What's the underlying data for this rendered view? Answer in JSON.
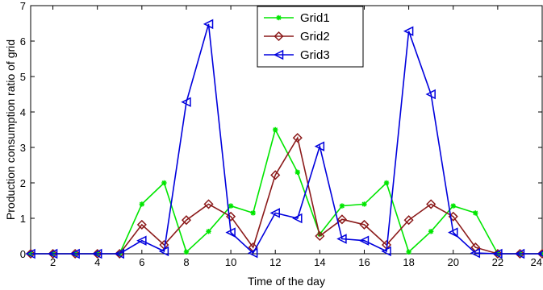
{
  "chart_data": {
    "type": "line",
    "title": "",
    "xlabel": "Time of the day",
    "ylabel": "Production consumption ratio of grid",
    "xlim": [
      1,
      24
    ],
    "ylim": [
      0,
      7
    ],
    "xticks": [
      2,
      4,
      6,
      8,
      10,
      12,
      14,
      16,
      18,
      20,
      22,
      24
    ],
    "yticks": [
      0,
      1,
      2,
      3,
      4,
      5,
      6,
      7
    ],
    "grid": false,
    "legend_position": "top-center",
    "x": [
      1,
      2,
      3,
      4,
      5,
      6,
      7,
      8,
      9,
      10,
      11,
      12,
      13,
      14,
      15,
      16,
      17,
      18,
      19,
      20,
      21,
      22,
      23,
      24
    ],
    "series": [
      {
        "name": "Grid1",
        "color": "#00e600",
        "marker": "asterisk",
        "values": [
          0,
          0,
          0,
          0,
          0,
          1.4,
          2.0,
          0.05,
          0.63,
          1.35,
          1.15,
          3.5,
          2.3,
          0.55,
          1.35,
          1.4,
          2.0,
          0.05,
          0.63,
          1.35,
          1.15,
          0,
          0,
          0
        ]
      },
      {
        "name": "Grid2",
        "color": "#8b1a1a",
        "marker": "diamond",
        "values": [
          0,
          0,
          0,
          0,
          0,
          0.82,
          0.25,
          0.95,
          1.4,
          1.05,
          0.18,
          2.22,
          3.27,
          0.5,
          0.97,
          0.82,
          0.25,
          0.95,
          1.4,
          1.05,
          0.18,
          0,
          0,
          0
        ]
      },
      {
        "name": "Grid3",
        "color": "#0000dd",
        "marker": "triangle-left",
        "values": [
          0,
          0,
          0,
          0,
          0,
          0.37,
          0.07,
          4.28,
          6.48,
          0.6,
          0.02,
          1.15,
          1.0,
          3.03,
          0.42,
          0.37,
          0.07,
          6.28,
          4.5,
          0.6,
          0.02,
          0,
          0,
          0
        ]
      }
    ]
  }
}
